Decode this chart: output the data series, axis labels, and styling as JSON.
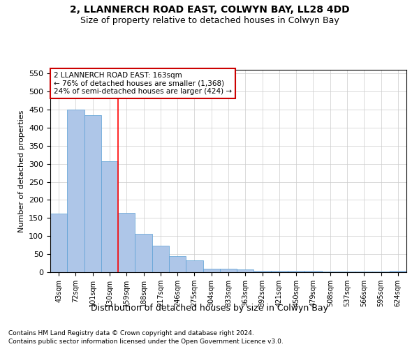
{
  "title1": "2, LLANNERCH ROAD EAST, COLWYN BAY, LL28 4DD",
  "title2": "Size of property relative to detached houses in Colwyn Bay",
  "xlabel": "Distribution of detached houses by size in Colwyn Bay",
  "ylabel": "Number of detached properties",
  "footnote1": "Contains HM Land Registry data © Crown copyright and database right 2024.",
  "footnote2": "Contains public sector information licensed under the Open Government Licence v3.0.",
  "categories": [
    "43sqm",
    "72sqm",
    "101sqm",
    "130sqm",
    "159sqm",
    "188sqm",
    "217sqm",
    "246sqm",
    "275sqm",
    "304sqm",
    "333sqm",
    "363sqm",
    "392sqm",
    "421sqm",
    "450sqm",
    "479sqm",
    "508sqm",
    "537sqm",
    "566sqm",
    "595sqm",
    "624sqm"
  ],
  "values": [
    163,
    450,
    435,
    307,
    165,
    107,
    73,
    44,
    33,
    10,
    10,
    7,
    4,
    4,
    4,
    4,
    1,
    1,
    1,
    1,
    4
  ],
  "bar_color": "#aec6e8",
  "bar_edgecolor": "#5a9fd4",
  "annotation_text": "2 LLANNERCH ROAD EAST: 163sqm\n← 76% of detached houses are smaller (1,368)\n24% of semi-detached houses are larger (424) →",
  "annotation_box_edgecolor": "#cc0000",
  "redline_x": 3.5,
  "ylim": [
    0,
    560
  ],
  "yticks": [
    0,
    50,
    100,
    150,
    200,
    250,
    300,
    350,
    400,
    450,
    500,
    550
  ]
}
